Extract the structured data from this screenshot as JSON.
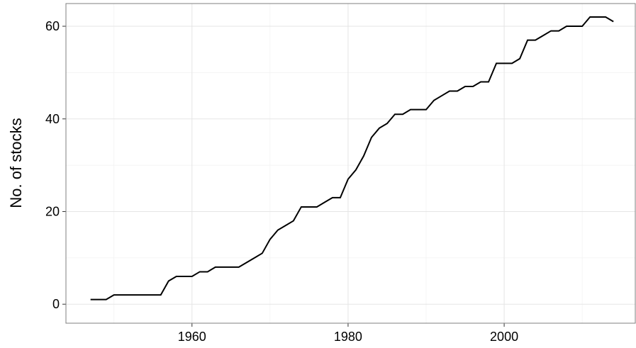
{
  "chart_data": {
    "type": "line",
    "y_label": "No. of stocks",
    "x": [
      1947,
      1948,
      1949,
      1950,
      1951,
      1952,
      1953,
      1954,
      1955,
      1956,
      1957,
      1958,
      1959,
      1960,
      1961,
      1962,
      1963,
      1964,
      1965,
      1966,
      1967,
      1968,
      1969,
      1970,
      1971,
      1972,
      1973,
      1974,
      1975,
      1976,
      1977,
      1978,
      1979,
      1980,
      1981,
      1982,
      1983,
      1984,
      1985,
      1986,
      1987,
      1988,
      1989,
      1990,
      1991,
      1992,
      1993,
      1994,
      1995,
      1996,
      1997,
      1998,
      1999,
      2000,
      2001,
      2002,
      2003,
      2004,
      2005,
      2006,
      2007,
      2008,
      2009,
      2010,
      2011,
      2012,
      2013,
      2014
    ],
    "values": [
      1,
      1,
      1,
      2,
      2,
      2,
      2,
      2,
      2,
      2,
      5,
      6,
      6,
      6,
      7,
      7,
      8,
      8,
      8,
      8,
      9,
      10,
      11,
      14,
      16,
      17,
      18,
      21,
      21,
      21,
      22,
      23,
      23,
      27,
      29,
      32,
      36,
      38,
      39,
      41,
      41,
      42,
      42,
      42,
      44,
      45,
      46,
      46,
      47,
      47,
      48,
      48,
      52,
      52,
      52,
      53,
      57,
      57,
      58,
      59,
      59,
      60,
      60,
      60,
      62,
      62,
      62,
      61
    ],
    "color": "#000000",
    "xlim": [
      1943.85,
      2016.8
    ],
    "xticks": [
      1960,
      1980,
      2000
    ],
    "ylim": [
      -4.1,
      64.9
    ],
    "yticks": [
      0,
      20,
      40,
      60
    ],
    "grid": true
  }
}
